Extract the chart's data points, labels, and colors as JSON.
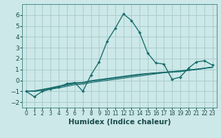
{
  "title": "",
  "xlabel": "Humidex (Indice chaleur)",
  "ylabel": "",
  "xlim": [
    -0.5,
    23.5
  ],
  "ylim": [
    -2.5,
    7.0
  ],
  "bg_color": "#cce8e8",
  "grid_color": "#aacccc",
  "line_color": "#1a6e6e",
  "lines": [
    {
      "x": [
        0,
        1,
        2,
        3,
        4,
        5,
        6,
        7,
        8,
        9,
        10,
        11,
        12,
        13,
        14,
        15,
        16,
        17,
        18,
        19,
        20,
        21,
        22,
        23
      ],
      "y": [
        -1.0,
        -1.5,
        -1.0,
        -0.8,
        -0.6,
        -0.3,
        -0.2,
        -1.0,
        0.5,
        1.7,
        3.6,
        4.8,
        6.1,
        5.5,
        4.4,
        2.5,
        1.6,
        1.5,
        0.1,
        0.3,
        1.1,
        1.7,
        1.8,
        1.4
      ],
      "marker": true,
      "lw": 1.0
    },
    {
      "x": [
        0,
        1,
        2,
        3,
        4,
        5,
        6,
        7,
        8,
        9,
        10,
        11,
        12,
        13,
        14,
        15,
        16,
        17,
        18,
        19,
        20,
        21,
        22,
        23
      ],
      "y": [
        -1.0,
        -1.0,
        -0.9,
        -0.8,
        -0.7,
        -0.55,
        -0.4,
        -0.35,
        -0.2,
        -0.1,
        0.0,
        0.1,
        0.2,
        0.3,
        0.4,
        0.5,
        0.6,
        0.7,
        0.75,
        0.8,
        0.9,
        1.0,
        1.1,
        1.2
      ],
      "marker": false,
      "lw": 0.8
    },
    {
      "x": [
        0,
        1,
        2,
        3,
        4,
        5,
        6,
        7,
        8,
        9,
        10,
        11,
        12,
        13,
        14,
        15,
        16,
        17,
        18,
        19,
        20,
        21,
        22,
        23
      ],
      "y": [
        -1.0,
        -1.0,
        -0.9,
        -0.75,
        -0.6,
        -0.45,
        -0.3,
        -0.25,
        -0.1,
        0.0,
        0.1,
        0.2,
        0.3,
        0.4,
        0.5,
        0.6,
        0.65,
        0.72,
        0.78,
        0.84,
        0.92,
        1.0,
        1.1,
        1.2
      ],
      "marker": false,
      "lw": 0.8
    },
    {
      "x": [
        0,
        1,
        2,
        3,
        4,
        5,
        6,
        7,
        8,
        9,
        10,
        11,
        12,
        13,
        14,
        15,
        16,
        17,
        18,
        19,
        20,
        21,
        22,
        23
      ],
      "y": [
        -1.0,
        -1.0,
        -0.85,
        -0.7,
        -0.55,
        -0.4,
        -0.25,
        -0.2,
        -0.05,
        0.05,
        0.15,
        0.25,
        0.35,
        0.45,
        0.55,
        0.62,
        0.68,
        0.74,
        0.8,
        0.86,
        0.94,
        1.02,
        1.12,
        1.22
      ],
      "marker": false,
      "lw": 0.8
    },
    {
      "x": [
        0,
        1,
        2,
        3,
        4,
        5,
        6,
        7,
        8,
        9,
        10,
        11,
        12,
        13,
        14,
        15,
        16,
        17,
        18,
        19,
        20,
        21,
        22,
        23
      ],
      "y": [
        -1.0,
        -0.95,
        -0.82,
        -0.68,
        -0.52,
        -0.37,
        -0.22,
        -0.18,
        -0.02,
        0.08,
        0.18,
        0.28,
        0.38,
        0.48,
        0.57,
        0.64,
        0.7,
        0.76,
        0.82,
        0.88,
        0.96,
        1.04,
        1.13,
        1.23
      ],
      "marker": false,
      "lw": 0.8
    }
  ],
  "xticks": [
    0,
    1,
    2,
    3,
    4,
    5,
    6,
    7,
    8,
    9,
    10,
    11,
    12,
    13,
    14,
    15,
    16,
    17,
    18,
    19,
    20,
    21,
    22,
    23
  ],
  "yticks": [
    -2,
    -1,
    0,
    1,
    2,
    3,
    4,
    5,
    6
  ],
  "xtick_fontsize": 5.5,
  "ytick_fontsize": 6.5,
  "xlabel_fontsize": 7.5
}
